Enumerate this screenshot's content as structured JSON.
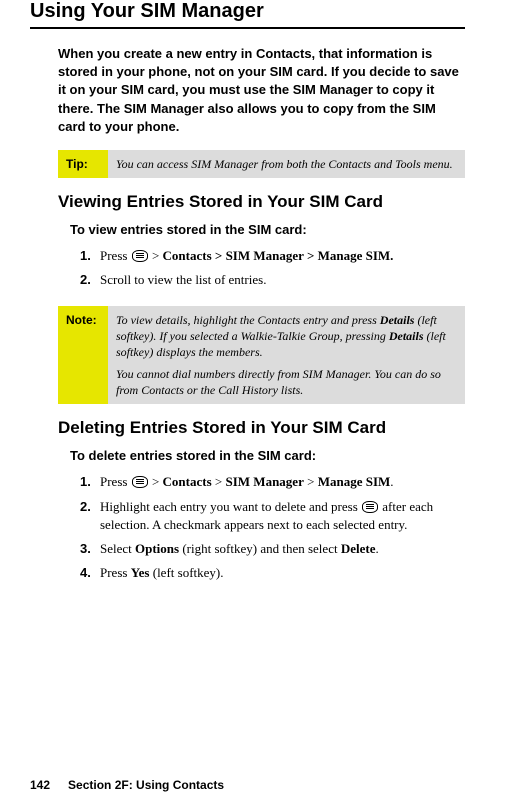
{
  "headings": {
    "main": "Using Your SIM Manager",
    "viewing": "Viewing Entries Stored in Your SIM Card",
    "deleting": "Deleting Entries Stored in Your SIM Card"
  },
  "intro_para": "When you create a new entry in Contacts, that information is stored in your phone, not on your SIM card. If you decide to save it on your SIM card, you must use the SIM Manager to copy it there. The SIM Manager also allows you to copy from the SIM card to your phone.",
  "tip": {
    "label": "Tip:",
    "body": "You can access SIM Manager from both the Contacts and Tools menu."
  },
  "viewing": {
    "intro": "To view entries stored in the SIM card:",
    "step1": {
      "num": "1.",
      "pre": "Press ",
      "post": " > ",
      "bold1": "Contacts",
      "sep": " > ",
      "bold2": "SIM Manager > Manage SIM."
    },
    "step2": {
      "num": "2.",
      "text": "Scroll to view the list of entries."
    }
  },
  "note": {
    "label": "Note:",
    "p1a": "To view details, highlight the Contacts entry and press ",
    "p1b": "Details",
    "p1c": " (left softkey). If you selected a Walkie-Talkie Group, pressing ",
    "p1d": "Details",
    "p1e": " (left softkey) displays the members.",
    "p2": "You cannot dial numbers directly from SIM Manager. You can do so from Contacts or the Call History lists."
  },
  "deleting": {
    "intro": "To delete entries stored in the SIM card:",
    "step1": {
      "num": "1.",
      "pre": "Press ",
      "post": " > ",
      "bold1": "Contacts",
      "sep1": " > ",
      "bold2": "SIM Manager",
      "sep2": " > ",
      "bold3": "Manage SIM",
      "period": "."
    },
    "step2": {
      "num": "2.",
      "pre": "Highlight each entry you want to delete and press ",
      "post": " after each selection. A checkmark appears next to each selected entry."
    },
    "step3": {
      "num": "3.",
      "pre": "Select ",
      "bold1": "Options",
      "mid": " (right softkey) and then select ",
      "bold2": "Delete",
      "period": "."
    },
    "step4": {
      "num": "4.",
      "pre": "Press ",
      "bold1": "Yes",
      "post": " (left softkey)."
    }
  },
  "footer": {
    "pageno": "142",
    "section": "Section 2F: Using Contacts"
  },
  "colors": {
    "tip_label_bg": "#e6e600",
    "box_body_bg": "#dcdcdc",
    "text": "#000000",
    "bg": "#ffffff"
  }
}
